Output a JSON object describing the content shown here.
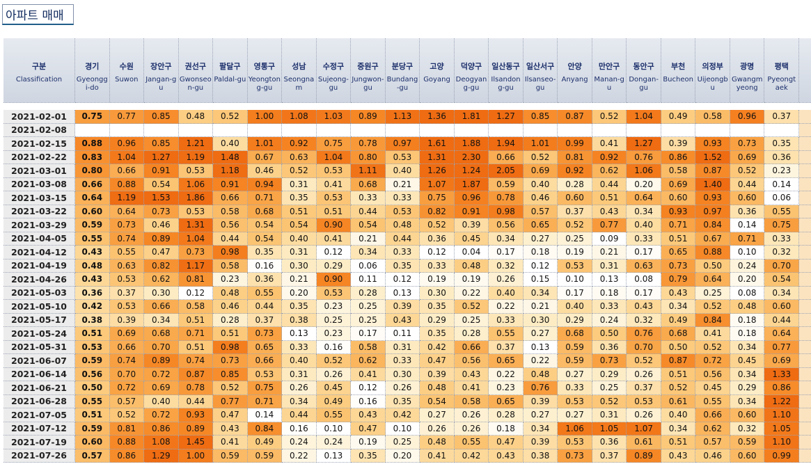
{
  "title": "아파트 매매",
  "table": {
    "header": {
      "ko": "구분",
      "en": "Classification"
    },
    "columns": [
      {
        "ko": "경기",
        "en": "Gyeonggi-do"
      },
      {
        "ko": "수원",
        "en": "Suwon"
      },
      {
        "ko": "장안구",
        "en": "Jangan-gu"
      },
      {
        "ko": "권선구",
        "en": "Gwonseon-gu"
      },
      {
        "ko": "팔달구",
        "en": "Paldal-gu"
      },
      {
        "ko": "영통구",
        "en": "Yeongtong-gu"
      },
      {
        "ko": "성남",
        "en": "Seongnam"
      },
      {
        "ko": "수정구",
        "en": "Sujeong-gu"
      },
      {
        "ko": "중원구",
        "en": "Jungwon-gu"
      },
      {
        "ko": "분당구",
        "en": "Bundang-gu"
      },
      {
        "ko": "고양",
        "en": "Goyang"
      },
      {
        "ko": "덕양구",
        "en": "Deogyang-gu"
      },
      {
        "ko": "일산동구",
        "en": "Ilsandong-gu"
      },
      {
        "ko": "일산서구",
        "en": "Ilsanseo-gu"
      },
      {
        "ko": "안양",
        "en": "Anyang"
      },
      {
        "ko": "만안구",
        "en": "Manan-gu"
      },
      {
        "ko": "동안구",
        "en": "Dongan-gu"
      },
      {
        "ko": "부천",
        "en": "Bucheon"
      },
      {
        "ko": "의정부",
        "en": "Uijeongbu"
      },
      {
        "ko": "광명",
        "en": "Gwangmyeong"
      },
      {
        "ko": "평택",
        "en": "Pyeongtaek"
      }
    ],
    "rows": [
      {
        "date": "2021-02-01",
        "values": [
          "0.75",
          "0.77",
          "0.85",
          "0.48",
          "0.52",
          "1.00",
          "1.08",
          "1.03",
          "0.89",
          "1.13",
          "1.36",
          "1.81",
          "1.27",
          "0.85",
          "0.87",
          "0.52",
          "1.04",
          "0.49",
          "0.58",
          "0.96",
          "0.37"
        ]
      },
      {
        "date": "2021-02-08"
      },
      {
        "date": "2021-02-15",
        "values": [
          "0.88",
          "0.96",
          "0.85",
          "1.21",
          "0.40",
          "1.01",
          "0.92",
          "0.75",
          "0.78",
          "0.97",
          "1.61",
          "1.88",
          "1.94",
          "1.01",
          "0.99",
          "0.41",
          "1.27",
          "0.39",
          "0.93",
          "0.73",
          "0.35"
        ]
      },
      {
        "date": "2021-02-22",
        "values": [
          "0.83",
          "1.04",
          "1.27",
          "1.19",
          "1.48",
          "0.67",
          "0.63",
          "1.04",
          "0.80",
          "0.53",
          "1.31",
          "2.30",
          "0.66",
          "0.52",
          "0.81",
          "0.92",
          "0.76",
          "0.86",
          "1.52",
          "0.69",
          "0.36"
        ]
      },
      {
        "date": "2021-03-01",
        "values": [
          "0.80",
          "0.66",
          "0.91",
          "0.53",
          "1.18",
          "0.46",
          "0.52",
          "0.53",
          "1.11",
          "0.40",
          "1.26",
          "1.24",
          "2.05",
          "0.69",
          "0.92",
          "0.62",
          "1.06",
          "0.58",
          "0.87",
          "0.52",
          "0.23"
        ]
      },
      {
        "date": "2021-03-08",
        "values": [
          "0.66",
          "0.88",
          "0.54",
          "1.06",
          "0.91",
          "0.94",
          "0.31",
          "0.41",
          "0.68",
          "0.21",
          "1.07",
          "1.87",
          "0.59",
          "0.40",
          "0.28",
          "0.44",
          "0.20",
          "0.69",
          "1.40",
          "0.44",
          "0.14"
        ]
      },
      {
        "date": "2021-03-15",
        "values": [
          "0.64",
          "1.19",
          "1.53",
          "1.86",
          "0.66",
          "0.71",
          "0.35",
          "0.53",
          "0.33",
          "0.33",
          "0.75",
          "0.96",
          "0.78",
          "0.46",
          "0.60",
          "0.51",
          "0.64",
          "0.60",
          "0.93",
          "0.60",
          "0.06"
        ]
      },
      {
        "date": "2021-03-22",
        "values": [
          "0.60",
          "0.64",
          "0.73",
          "0.53",
          "0.58",
          "0.68",
          "0.51",
          "0.51",
          "0.44",
          "0.53",
          "0.82",
          "0.91",
          "0.98",
          "0.57",
          "0.37",
          "0.43",
          "0.34",
          "0.93",
          "0.97",
          "0.36",
          "0.55"
        ]
      },
      {
        "date": "2021-03-29",
        "values": [
          "0.59",
          "0.73",
          "0.46",
          "1.31",
          "0.56",
          "0.54",
          "0.54",
          "0.90",
          "0.54",
          "0.48",
          "0.52",
          "0.39",
          "0.56",
          "0.65",
          "0.52",
          "0.77",
          "0.40",
          "0.71",
          "0.84",
          "0.14",
          "0.75"
        ]
      },
      {
        "date": "2021-04-05",
        "values": [
          "0.55",
          "0.74",
          "0.89",
          "1.04",
          "0.44",
          "0.54",
          "0.40",
          "0.41",
          "0.21",
          "0.44",
          "0.36",
          "0.45",
          "0.34",
          "0.27",
          "0.25",
          "0.09",
          "0.33",
          "0.51",
          "0.67",
          "0.71",
          "0.33"
        ]
      },
      {
        "date": "2021-04-12",
        "values": [
          "0.43",
          "0.55",
          "0.47",
          "0.73",
          "0.98",
          "0.35",
          "0.31",
          "0.12",
          "0.34",
          "0.33",
          "0.12",
          "0.04",
          "0.17",
          "0.18",
          "0.19",
          "0.21",
          "0.17",
          "0.65",
          "0.88",
          "0.10",
          "0.32"
        ]
      },
      {
        "date": "2021-04-19",
        "values": [
          "0.48",
          "0.63",
          "0.82",
          "1.17",
          "0.58",
          "0.16",
          "0.30",
          "0.29",
          "0.06",
          "0.35",
          "0.33",
          "0.48",
          "0.32",
          "0.12",
          "0.53",
          "0.31",
          "0.63",
          "0.73",
          "0.50",
          "0.24",
          "0.70"
        ]
      },
      {
        "date": "2021-04-26",
        "values": [
          "0.43",
          "0.53",
          "0.62",
          "0.81",
          "0.23",
          "0.36",
          "0.21",
          "0.90",
          "0.11",
          "0.12",
          "0.19",
          "0.19",
          "0.26",
          "0.15",
          "0.10",
          "0.13",
          "0.08",
          "0.79",
          "0.64",
          "0.20",
          "0.54"
        ]
      },
      {
        "date": "2021-05-03",
        "values": [
          "0.36",
          "0.37",
          "0.30",
          "0.12",
          "0.48",
          "0.55",
          "0.20",
          "0.53",
          "0.28",
          "0.13",
          "0.30",
          "0.22",
          "0.40",
          "0.34",
          "0.17",
          "0.18",
          "0.17",
          "0.43",
          "0.25",
          "0.08",
          "0.34"
        ]
      },
      {
        "date": "2021-05-10",
        "values": [
          "0.42",
          "0.53",
          "0.66",
          "0.58",
          "0.46",
          "0.44",
          "0.35",
          "0.23",
          "0.25",
          "0.39",
          "0.35",
          "0.52",
          "0.22",
          "0.21",
          "0.40",
          "0.33",
          "0.43",
          "0.34",
          "0.52",
          "0.48",
          "0.60"
        ]
      },
      {
        "date": "2021-05-17",
        "values": [
          "0.38",
          "0.39",
          "0.34",
          "0.51",
          "0.28",
          "0.37",
          "0.38",
          "0.25",
          "0.25",
          "0.43",
          "0.29",
          "0.25",
          "0.33",
          "0.30",
          "0.29",
          "0.24",
          "0.32",
          "0.49",
          "0.84",
          "0.18",
          "0.44"
        ]
      },
      {
        "date": "2021-05-24",
        "values": [
          "0.51",
          "0.69",
          "0.68",
          "0.71",
          "0.51",
          "0.73",
          "0.13",
          "0.23",
          "0.17",
          "0.11",
          "0.35",
          "0.28",
          "0.55",
          "0.27",
          "0.68",
          "0.50",
          "0.76",
          "0.68",
          "0.41",
          "0.18",
          "0.64"
        ]
      },
      {
        "date": "2021-05-31",
        "values": [
          "0.53",
          "0.66",
          "0.70",
          "0.51",
          "0.98",
          "0.65",
          "0.33",
          "0.16",
          "0.58",
          "0.31",
          "0.42",
          "0.66",
          "0.37",
          "0.13",
          "0.59",
          "0.36",
          "0.70",
          "0.50",
          "0.52",
          "0.34",
          "0.77"
        ]
      },
      {
        "date": "2021-06-07",
        "values": [
          "0.59",
          "0.74",
          "0.89",
          "0.74",
          "0.73",
          "0.66",
          "0.40",
          "0.52",
          "0.62",
          "0.33",
          "0.47",
          "0.56",
          "0.65",
          "0.22",
          "0.59",
          "0.73",
          "0.52",
          "0.87",
          "0.72",
          "0.45",
          "0.69"
        ]
      },
      {
        "date": "2021-06-14",
        "values": [
          "0.56",
          "0.70",
          "0.72",
          "0.87",
          "0.85",
          "0.53",
          "0.31",
          "0.26",
          "0.41",
          "0.30",
          "0.39",
          "0.43",
          "0.22",
          "0.48",
          "0.27",
          "0.29",
          "0.26",
          "0.51",
          "0.56",
          "0.34",
          "1.33"
        ]
      },
      {
        "date": "2021-06-21",
        "values": [
          "0.50",
          "0.72",
          "0.69",
          "0.78",
          "0.52",
          "0.75",
          "0.26",
          "0.45",
          "0.12",
          "0.26",
          "0.48",
          "0.41",
          "0.23",
          "0.76",
          "0.33",
          "0.25",
          "0.37",
          "0.52",
          "0.45",
          "0.29",
          "0.86"
        ]
      },
      {
        "date": "2021-06-28",
        "values": [
          "0.55",
          "0.57",
          "0.40",
          "0.44",
          "0.77",
          "0.71",
          "0.34",
          "0.49",
          "0.16",
          "0.35",
          "0.54",
          "0.58",
          "0.65",
          "0.39",
          "0.53",
          "0.52",
          "0.53",
          "0.61",
          "0.55",
          "0.34",
          "1.22"
        ]
      },
      {
        "date": "2021-07-05",
        "values": [
          "0.51",
          "0.52",
          "0.72",
          "0.93",
          "0.47",
          "0.14",
          "0.44",
          "0.55",
          "0.43",
          "0.42",
          "0.27",
          "0.26",
          "0.28",
          "0.27",
          "0.27",
          "0.31",
          "0.26",
          "0.40",
          "0.66",
          "0.60",
          "1.10"
        ]
      },
      {
        "date": "2021-07-12",
        "values": [
          "0.59",
          "0.81",
          "0.86",
          "0.89",
          "0.43",
          "0.84",
          "0.16",
          "0.10",
          "0.47",
          "0.10",
          "0.26",
          "0.26",
          "0.18",
          "0.34",
          "1.06",
          "1.05",
          "1.07",
          "0.34",
          "0.62",
          "0.32",
          "1.05"
        ]
      },
      {
        "date": "2021-07-19",
        "values": [
          "0.60",
          "0.88",
          "1.08",
          "1.45",
          "0.41",
          "0.49",
          "0.24",
          "0.24",
          "0.19",
          "0.25",
          "0.48",
          "0.55",
          "0.47",
          "0.39",
          "0.53",
          "0.36",
          "0.61",
          "0.51",
          "0.57",
          "0.59",
          "1.10"
        ]
      },
      {
        "date": "2021-07-26",
        "values": [
          "0.57",
          "0.86",
          "1.29",
          "1.00",
          "0.59",
          "0.59",
          "0.22",
          "0.13",
          "0.35",
          "0.20",
          "0.41",
          "0.42",
          "0.43",
          "0.38",
          "0.73",
          "0.37",
          "0.89",
          "0.43",
          "0.46",
          "0.60",
          "0.99"
        ]
      }
    ]
  }
}
